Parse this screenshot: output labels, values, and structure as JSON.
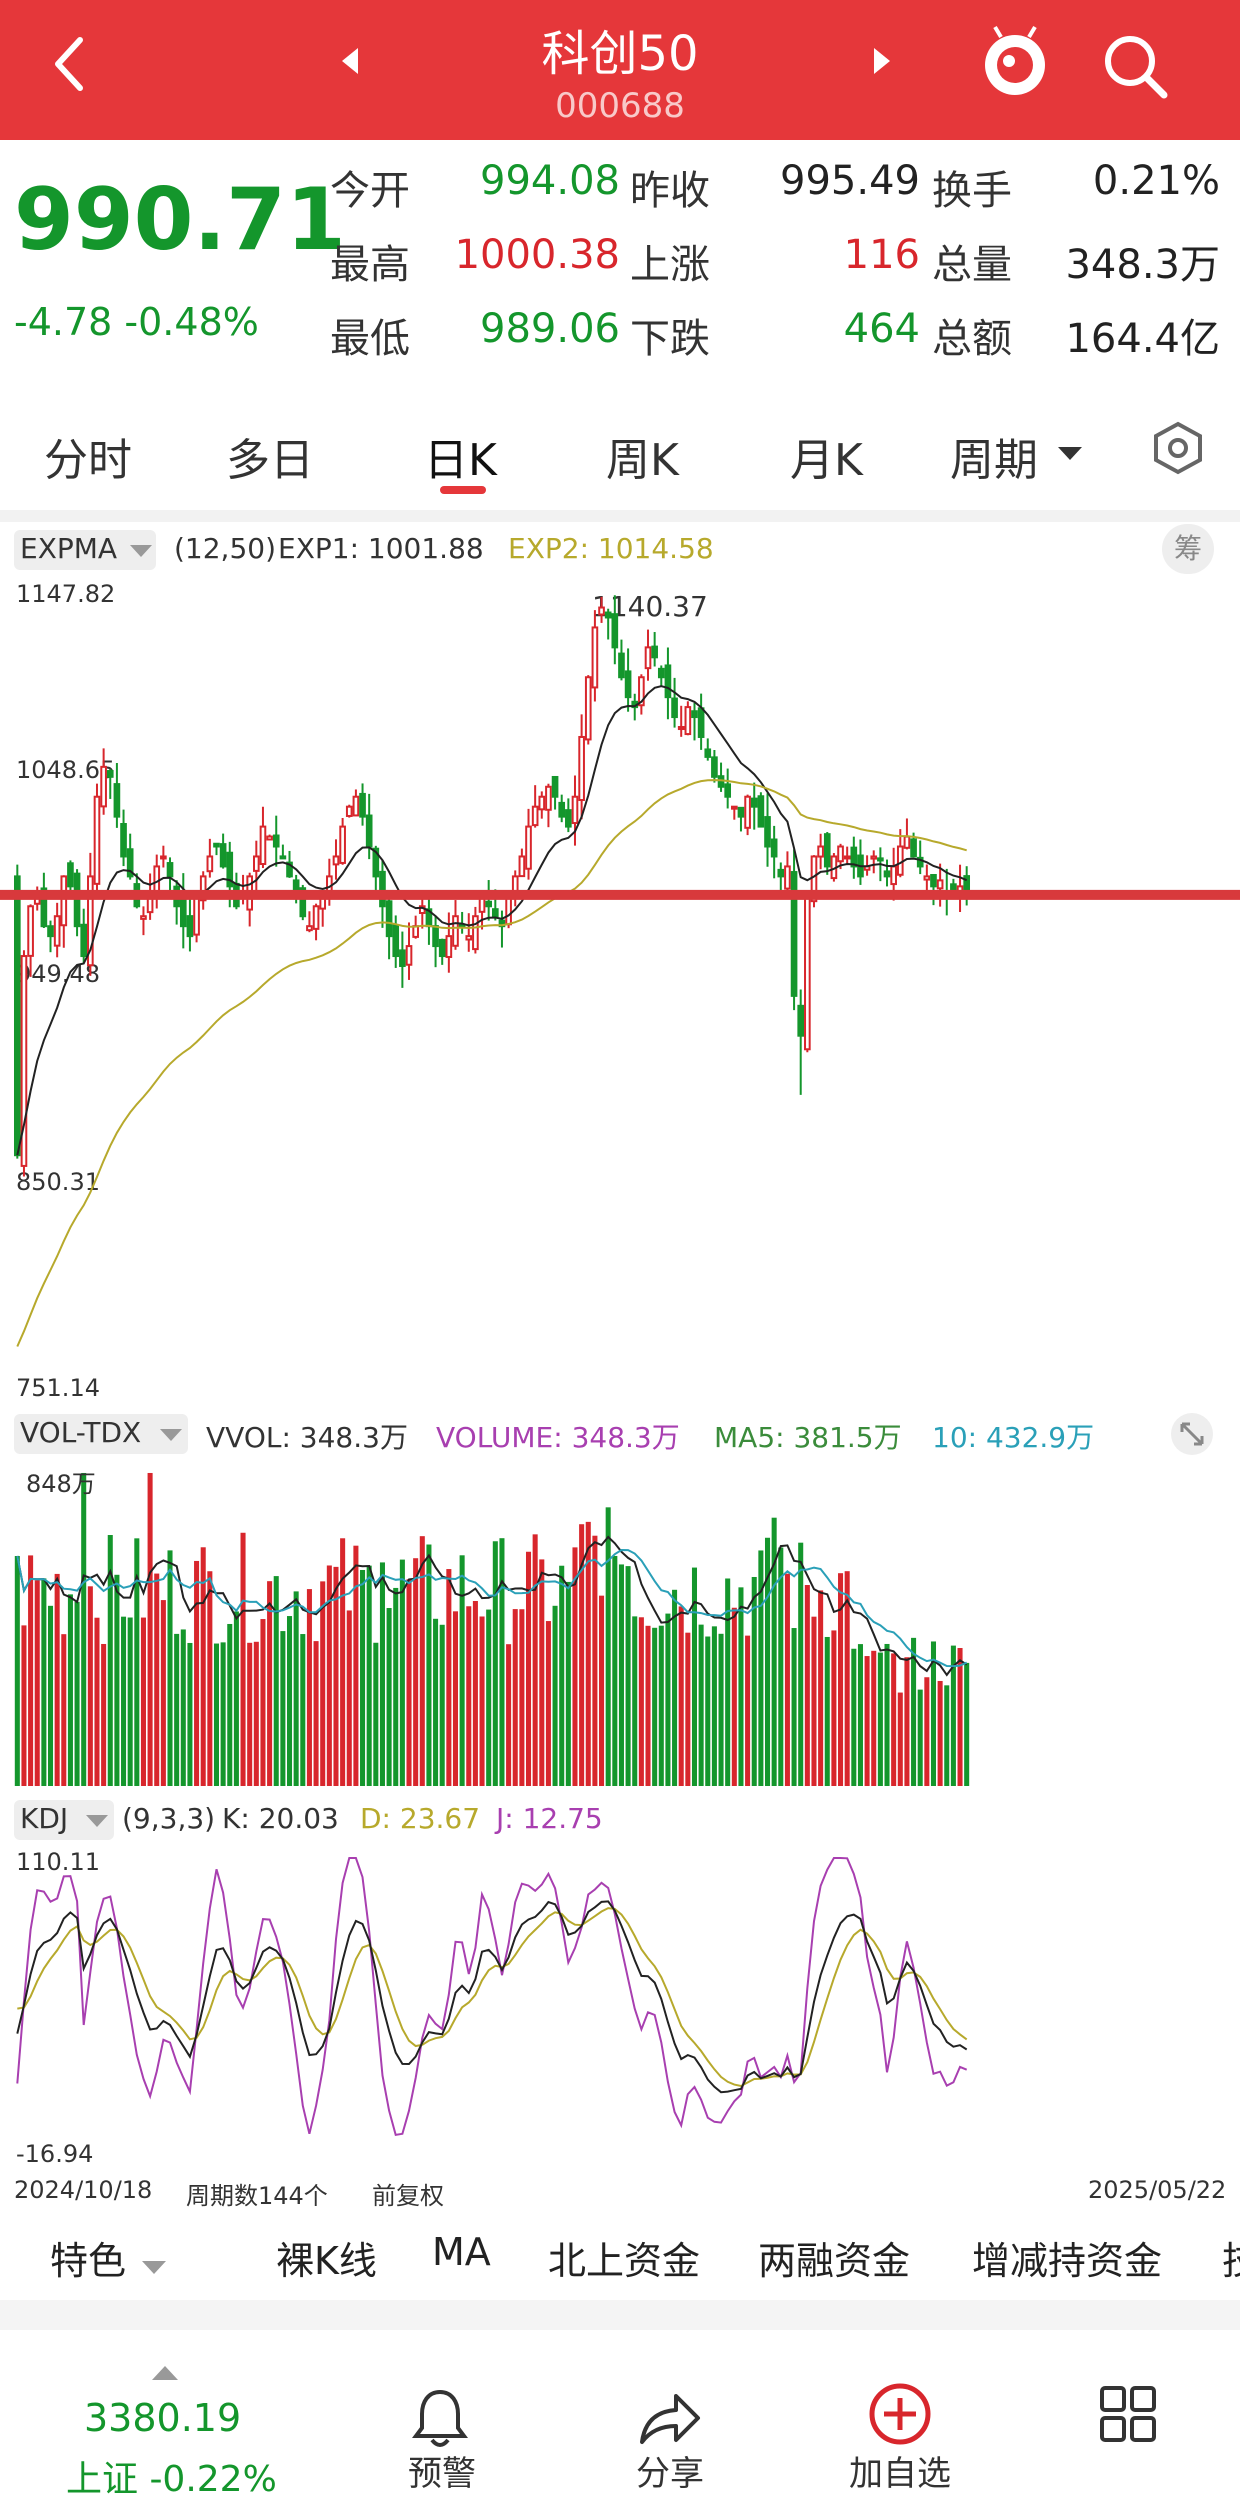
{
  "header": {
    "title": "科创50",
    "code": "000688"
  },
  "quote": {
    "price": "990.71",
    "change": "-4.78",
    "change_pct": "-0.48%",
    "rows": [
      [
        {
          "label": "今开",
          "value": "994.08",
          "color": "g"
        },
        {
          "label": "昨收",
          "value": "995.49",
          "color": "k"
        },
        {
          "label": "换手",
          "value": "0.21%",
          "color": "k"
        }
      ],
      [
        {
          "label": "最高",
          "value": "1000.38",
          "color": "r"
        },
        {
          "label": "上涨",
          "value": "116",
          "color": "r"
        },
        {
          "label": "总量",
          "value": "348.3万",
          "color": "k"
        }
      ],
      [
        {
          "label": "最低",
          "value": "989.06",
          "color": "g"
        },
        {
          "label": "下跌",
          "value": "464",
          "color": "g"
        },
        {
          "label": "总额",
          "value": "164.4亿",
          "color": "k"
        }
      ]
    ]
  },
  "tabs": [
    "分时",
    "多日",
    "日K",
    "周K",
    "月K",
    "周期"
  ],
  "active_tab": "日K",
  "colors": {
    "up": "#d8262c",
    "down": "#14962c",
    "exp1": "#222222",
    "exp2": "#b7a92c",
    "ma5": "#3b8c3b",
    "ma10": "#2aa0b8",
    "k": "#222222",
    "d": "#b7a92c",
    "j": "#a83fb0",
    "header": "#e5373a"
  },
  "main_indicator": {
    "name": "EXPMA",
    "params": "(12,50)",
    "exp1_label": "EXP1: 1001.88",
    "exp2_label": "EXP2: 1014.58",
    "chou": "筹"
  },
  "vol_indicator": {
    "name": "VOL-TDX",
    "vvol": "VVOL: 348.3万",
    "volume": "VOLUME: 348.3万",
    "ma5": "MA5: 381.5万",
    "ma10": "10: 432.9万",
    "top_label": "848万"
  },
  "kdj_indicator": {
    "name": "KDJ",
    "params": "(9,3,3)",
    "k": "K: 20.03",
    "d": "D: 23.67",
    "j": "J: 12.75",
    "top": "110.11",
    "bottom": "-16.94"
  },
  "footer_info": {
    "start_date": "2024/10/18",
    "count": "周期数144个",
    "adjust": "前复权",
    "end_date": "2025/05/22"
  },
  "bottom_tabs": [
    "特色",
    "裸K线",
    "MA",
    "北上资金",
    "两融资金",
    "增减持资金",
    "技"
  ],
  "nav": {
    "index_value": "3380.19",
    "index_label": "上证 -0.22%",
    "items": [
      "预警",
      "分享",
      "加自选",
      "更多"
    ]
  },
  "chart_data": {
    "type": "candlestick",
    "yaxis_labels": [
      "1147.82",
      "1048.65",
      "949.48",
      "850.31",
      "751.14"
    ],
    "ylim": [
      751.14,
      1147.82
    ],
    "max_label": "1140.37",
    "current_price": 990.71,
    "closes": [
      860,
      960,
      985,
      990,
      975,
      970,
      980,
      1000,
      995,
      975,
      960,
      1000,
      1040,
      1055,
      1050,
      1030,
      1010,
      1000,
      985,
      980,
      990,
      1005,
      1010,
      1000,
      985,
      975,
      970,
      990,
      1000,
      1010,
      1015,
      1005,
      995,
      985,
      990,
      1000,
      1010,
      1025,
      1020,
      1015,
      1010,
      1000,
      990,
      980,
      975,
      985,
      990,
      1000,
      1010,
      1025,
      1035,
      1040,
      1030,
      1015,
      1000,
      985,
      970,
      960,
      955,
      965,
      975,
      985,
      975,
      965,
      960,
      970,
      980,
      975,
      970,
      980,
      990,
      985,
      980,
      975,
      990,
      1000,
      1010,
      1025,
      1035,
      1040,
      1045,
      1040,
      1030,
      1025,
      1040,
      1070,
      1100,
      1125,
      1135,
      1130,
      1115,
      1100,
      1090,
      1085,
      1100,
      1115,
      1110,
      1100,
      1090,
      1080,
      1075,
      1085,
      1080,
      1070,
      1060,
      1050,
      1045,
      1040,
      1035,
      1030,
      1040,
      1035,
      1025,
      1015,
      1010,
      1000,
      1005,
      940,
      920,
      990,
      1010,
      1015,
      1005,
      1010,
      1015,
      1010,
      1005,
      1000,
      1005,
      1010,
      1008,
      1000,
      1005,
      1015,
      1020,
      1010,
      1005,
      1000,
      995,
      998,
      990,
      992,
      995,
      990
    ],
    "volume_ylim_top_wan": 848,
    "kdj_ylim": [
      -16.94,
      110.11
    ]
  }
}
